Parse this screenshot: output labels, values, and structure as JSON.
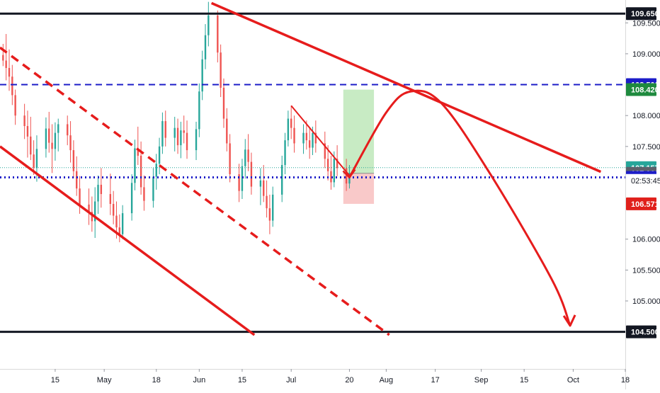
{
  "chart_data": {
    "type": "candlestick",
    "title": "",
    "y_range": [
      103.9,
      109.87
    ],
    "x_range": [
      "2021-03-28",
      "2021-10-18"
    ],
    "grid": false,
    "y_ticks": [
      {
        "value": 109.5,
        "label": "109.500"
      },
      {
        "value": 109.0,
        "label": "109.000"
      },
      {
        "value": 108.0,
        "label": "108.000"
      },
      {
        "value": 107.5,
        "label": "107.500"
      },
      {
        "value": 106.0,
        "label": "106.000"
      },
      {
        "value": 105.5,
        "label": "105.500"
      },
      {
        "value": 105.0,
        "label": "105.000"
      }
    ],
    "x_ticks": [
      {
        "date": "2021-04-15",
        "label": "15"
      },
      {
        "date": "2021-05-01",
        "label": "May"
      },
      {
        "date": "2021-05-18",
        "label": "18"
      },
      {
        "date": "2021-06-01",
        "label": "Jun"
      },
      {
        "date": "2021-06-15",
        "label": "15"
      },
      {
        "date": "2021-07-01",
        "label": "Jul"
      },
      {
        "date": "2021-07-20",
        "label": "20"
      },
      {
        "date": "2021-08-01",
        "label": "Aug"
      },
      {
        "date": "2021-08-17",
        "label": "17"
      },
      {
        "date": "2021-09-01",
        "label": "Sep"
      },
      {
        "date": "2021-09-15",
        "label": "15"
      },
      {
        "date": "2021-10-01",
        "label": "Oct"
      },
      {
        "date": "2021-10-18",
        "label": "18"
      }
    ],
    "price_tags": [
      {
        "value": 109.65,
        "label": "109.650",
        "bg": "#131722",
        "fg": "#ffffff"
      },
      {
        "value": 108.5,
        "label": "108.500",
        "bg": "#1c1cc8",
        "fg": "#ffffff"
      },
      {
        "value": 108.42,
        "label": "108.420",
        "bg": "#1e8a3e",
        "fg": "#ffffff"
      },
      {
        "value": 107.157,
        "label": "107.157",
        "bg": "#26a69a",
        "fg": "#ffffff"
      },
      {
        "value": 107.066,
        "label": "107.066",
        "bg": "#5d606b",
        "fg": "#ffffff"
      },
      {
        "value": 107.0,
        "label": "107.000",
        "bg": "#1c1cc8",
        "fg": "#ffffff"
      },
      {
        "value": 106.571,
        "label": "106.571",
        "bg": "#e0201b",
        "fg": "#ffffff"
      },
      {
        "value": 104.5,
        "label": "104.500",
        "bg": "#131722",
        "fg": "#ffffff"
      }
    ],
    "countdown": "02:53:45",
    "horizontal_levels": [
      {
        "value": 109.65,
        "style": "solid",
        "color": "#131722"
      },
      {
        "value": 104.5,
        "style": "solid",
        "color": "#131722"
      },
      {
        "value": 108.5,
        "style": "dashed",
        "color": "#1c1cc8"
      },
      {
        "value": 107.0,
        "style": "dotted",
        "color": "#1c1cc8"
      },
      {
        "value": 107.157,
        "style": "dotted-thin",
        "color": "#26a69a"
      }
    ],
    "trend_lines": [
      {
        "name": "upper-trendline",
        "from": [
          "2021-06-05",
          109.82
        ],
        "to": [
          "2021-10-10",
          107.09
        ],
        "style": "solid"
      },
      {
        "name": "channel-upper",
        "from": [
          "2021-03-28",
          109.1
        ],
        "to": [
          "2021-08-02",
          104.45
        ],
        "style": "dashed"
      },
      {
        "name": "channel-lower",
        "from": [
          "2021-03-28",
          107.5
        ],
        "to": [
          "2021-06-19",
          104.45
        ],
        "style": "solid"
      },
      {
        "name": "short-trendline",
        "from": [
          "2021-07-01",
          108.16
        ],
        "to": [
          "2021-07-20",
          107.03
        ],
        "style": "solid"
      }
    ],
    "position_box": {
      "start": "2021-07-18",
      "end": "2021-07-28",
      "entry": 107.066,
      "target": 108.42,
      "stop": 106.571
    },
    "projection_path": [
      [
        "2021-07-20",
        107.0
      ],
      [
        "2021-08-01",
        108.05
      ],
      [
        "2021-08-09",
        108.39
      ],
      [
        "2021-08-19",
        108.2
      ],
      [
        "2021-09-04",
        107.05
      ],
      [
        "2021-09-24",
        105.35
      ],
      [
        "2021-09-30",
        104.6
      ]
    ],
    "candles": [
      {
        "t": "2021-03-29",
        "o": 108.98,
        "h": 109.16,
        "l": 108.8,
        "c": 108.89
      },
      {
        "t": "2021-03-30",
        "o": 108.89,
        "h": 109.32,
        "l": 108.57,
        "c": 108.77
      },
      {
        "t": "2021-03-31",
        "o": 108.77,
        "h": 109.07,
        "l": 108.4,
        "c": 108.63
      },
      {
        "t": "2021-04-01",
        "o": 108.63,
        "h": 108.82,
        "l": 108.17,
        "c": 108.33
      },
      {
        "t": "2021-04-02",
        "o": 108.33,
        "h": 108.42,
        "l": 107.85,
        "c": 108.0
      },
      {
        "t": "2021-04-05",
        "o": 108.0,
        "h": 108.19,
        "l": 107.62,
        "c": 107.83
      },
      {
        "t": "2021-04-06",
        "o": 107.83,
        "h": 108.08,
        "l": 107.32,
        "c": 107.66
      },
      {
        "t": "2021-04-07",
        "o": 107.66,
        "h": 107.98,
        "l": 107.28,
        "c": 107.37
      },
      {
        "t": "2021-04-08",
        "o": 107.37,
        "h": 107.6,
        "l": 107.04,
        "c": 107.15
      },
      {
        "t": "2021-04-09",
        "o": 107.15,
        "h": 107.68,
        "l": 106.93,
        "c": 107.46
      },
      {
        "t": "2021-04-12",
        "o": 107.46,
        "h": 107.97,
        "l": 107.32,
        "c": 107.79
      },
      {
        "t": "2021-04-13",
        "o": 107.79,
        "h": 108.06,
        "l": 107.4,
        "c": 107.56
      },
      {
        "t": "2021-04-14",
        "o": 107.56,
        "h": 107.86,
        "l": 107.07,
        "c": 107.46
      },
      {
        "t": "2021-04-15",
        "o": 107.46,
        "h": 107.89,
        "l": 107.27,
        "c": 107.72
      },
      {
        "t": "2021-04-16",
        "o": 107.72,
        "h": 107.95,
        "l": 107.42,
        "c": 107.86
      },
      {
        "t": "2021-04-19",
        "o": 107.86,
        "h": 108.0,
        "l": 107.52,
        "c": 107.68
      },
      {
        "t": "2021-04-20",
        "o": 107.68,
        "h": 107.91,
        "l": 107.24,
        "c": 107.44
      },
      {
        "t": "2021-04-21",
        "o": 107.44,
        "h": 107.6,
        "l": 106.99,
        "c": 107.1
      },
      {
        "t": "2021-04-22",
        "o": 107.1,
        "h": 107.34,
        "l": 106.7,
        "c": 106.82
      },
      {
        "t": "2021-04-23",
        "o": 106.82,
        "h": 107.02,
        "l": 106.41,
        "c": 106.56
      },
      {
        "t": "2021-04-26",
        "o": 106.56,
        "h": 106.82,
        "l": 106.23,
        "c": 106.44
      },
      {
        "t": "2021-04-27",
        "o": 106.44,
        "h": 106.69,
        "l": 106.12,
        "c": 106.29
      },
      {
        "t": "2021-04-28",
        "o": 106.29,
        "h": 106.84,
        "l": 106.02,
        "c": 106.61
      },
      {
        "t": "2021-04-29",
        "o": 106.61,
        "h": 107.03,
        "l": 106.41,
        "c": 106.88
      },
      {
        "t": "2021-04-30",
        "o": 106.88,
        "h": 107.15,
        "l": 106.51,
        "c": 106.73
      },
      {
        "t": "2021-05-03",
        "o": 106.73,
        "h": 107.06,
        "l": 106.39,
        "c": 106.57
      },
      {
        "t": "2021-05-04",
        "o": 106.57,
        "h": 106.78,
        "l": 106.24,
        "c": 106.38
      },
      {
        "t": "2021-05-05",
        "o": 106.38,
        "h": 106.61,
        "l": 106.01,
        "c": 106.19
      },
      {
        "t": "2021-05-06",
        "o": 106.19,
        "h": 106.4,
        "l": 105.95,
        "c": 106.08
      },
      {
        "t": "2021-05-07",
        "o": 106.08,
        "h": 106.55,
        "l": 106.0,
        "c": 106.42
      },
      {
        "t": "2021-05-10",
        "o": 106.42,
        "h": 107.05,
        "l": 106.3,
        "c": 106.91
      },
      {
        "t": "2021-05-11",
        "o": 106.91,
        "h": 107.61,
        "l": 106.79,
        "c": 107.47
      },
      {
        "t": "2021-05-12",
        "o": 107.47,
        "h": 107.82,
        "l": 107.2,
        "c": 107.35
      },
      {
        "t": "2021-05-13",
        "o": 107.35,
        "h": 107.58,
        "l": 106.72,
        "c": 106.84
      },
      {
        "t": "2021-05-14",
        "o": 106.84,
        "h": 107.03,
        "l": 106.46,
        "c": 106.62
      },
      {
        "t": "2021-05-17",
        "o": 106.62,
        "h": 107.15,
        "l": 106.51,
        "c": 107.01
      },
      {
        "t": "2021-05-18",
        "o": 107.01,
        "h": 107.38,
        "l": 106.8,
        "c": 107.22
      },
      {
        "t": "2021-05-19",
        "o": 107.22,
        "h": 107.64,
        "l": 107.05,
        "c": 107.5
      },
      {
        "t": "2021-05-20",
        "o": 107.5,
        "h": 108.05,
        "l": 107.38,
        "c": 107.91
      },
      {
        "t": "2021-05-21",
        "o": 107.91,
        "h": 108.08,
        "l": 107.5,
        "c": 107.64
      },
      {
        "t": "2021-05-24",
        "o": 107.64,
        "h": 107.98,
        "l": 107.42,
        "c": 107.8
      },
      {
        "t": "2021-05-25",
        "o": 107.8,
        "h": 107.95,
        "l": 107.38,
        "c": 107.52
      },
      {
        "t": "2021-05-26",
        "o": 107.52,
        "h": 107.9,
        "l": 107.31,
        "c": 107.76
      },
      {
        "t": "2021-05-27",
        "o": 107.76,
        "h": 108.0,
        "l": 107.55,
        "c": 107.72
      },
      {
        "t": "2021-05-28",
        "o": 107.72,
        "h": 107.92,
        "l": 107.3,
        "c": 107.44
      },
      {
        "t": "2021-05-31",
        "o": 107.44,
        "h": 107.9,
        "l": 107.28,
        "c": 107.78
      },
      {
        "t": "2021-06-01",
        "o": 107.78,
        "h": 108.52,
        "l": 107.65,
        "c": 108.39
      },
      {
        "t": "2021-06-02",
        "o": 108.39,
        "h": 109.05,
        "l": 108.25,
        "c": 108.91
      },
      {
        "t": "2021-06-03",
        "o": 108.91,
        "h": 109.48,
        "l": 108.75,
        "c": 109.3
      },
      {
        "t": "2021-06-04",
        "o": 109.3,
        "h": 109.84,
        "l": 109.12,
        "c": 109.62
      },
      {
        "t": "2021-06-07",
        "o": 109.62,
        "h": 109.7,
        "l": 108.86,
        "c": 109.02
      },
      {
        "t": "2021-06-08",
        "o": 109.02,
        "h": 109.15,
        "l": 108.3,
        "c": 108.45
      },
      {
        "t": "2021-06-09",
        "o": 108.45,
        "h": 108.6,
        "l": 107.8,
        "c": 107.95
      },
      {
        "t": "2021-06-10",
        "o": 107.95,
        "h": 108.12,
        "l": 107.42,
        "c": 107.55
      },
      {
        "t": "2021-06-11",
        "o": 107.55,
        "h": 107.7,
        "l": 106.92,
        "c": 107.05
      },
      {
        "t": "2021-06-14",
        "o": 107.05,
        "h": 107.22,
        "l": 106.6,
        "c": 106.78
      },
      {
        "t": "2021-06-15",
        "o": 106.78,
        "h": 107.3,
        "l": 106.65,
        "c": 107.18
      },
      {
        "t": "2021-06-16",
        "o": 107.18,
        "h": 107.62,
        "l": 106.98,
        "c": 107.45
      },
      {
        "t": "2021-06-17",
        "o": 107.45,
        "h": 107.7,
        "l": 107.1,
        "c": 107.25
      },
      {
        "t": "2021-06-18",
        "o": 107.25,
        "h": 107.4,
        "l": 106.72,
        "c": 106.85
      },
      {
        "t": "2021-06-21",
        "o": 106.85,
        "h": 107.15,
        "l": 106.55,
        "c": 106.95
      },
      {
        "t": "2021-06-22",
        "o": 106.95,
        "h": 107.2,
        "l": 106.6,
        "c": 106.7
      },
      {
        "t": "2021-06-23",
        "o": 106.7,
        "h": 106.95,
        "l": 106.35,
        "c": 106.5
      },
      {
        "t": "2021-06-24",
        "o": 106.5,
        "h": 106.72,
        "l": 106.08,
        "c": 106.3
      },
      {
        "t": "2021-06-25",
        "o": 106.3,
        "h": 106.85,
        "l": 106.2,
        "c": 106.72
      },
      {
        "t": "2021-06-28",
        "o": 106.72,
        "h": 107.35,
        "l": 106.6,
        "c": 107.2
      },
      {
        "t": "2021-06-29",
        "o": 107.2,
        "h": 107.72,
        "l": 107.05,
        "c": 107.6
      },
      {
        "t": "2021-06-30",
        "o": 107.6,
        "h": 108.08,
        "l": 107.5,
        "c": 107.95
      },
      {
        "t": "2021-07-01",
        "o": 107.95,
        "h": 108.16,
        "l": 107.62,
        "c": 107.8
      },
      {
        "t": "2021-07-02",
        "o": 107.8,
        "h": 108.0,
        "l": 107.4,
        "c": 107.55
      },
      {
        "t": "2021-07-05",
        "o": 107.55,
        "h": 107.86,
        "l": 107.38,
        "c": 107.72
      },
      {
        "t": "2021-07-06",
        "o": 107.72,
        "h": 107.92,
        "l": 107.45,
        "c": 107.6
      },
      {
        "t": "2021-07-07",
        "o": 107.6,
        "h": 107.8,
        "l": 107.3,
        "c": 107.48
      },
      {
        "t": "2021-07-08",
        "o": 107.48,
        "h": 107.82,
        "l": 107.36,
        "c": 107.72
      },
      {
        "t": "2021-07-09",
        "o": 107.72,
        "h": 107.92,
        "l": 107.4,
        "c": 107.55
      },
      {
        "t": "2021-07-12",
        "o": 107.55,
        "h": 107.74,
        "l": 107.15,
        "c": 107.3
      },
      {
        "t": "2021-07-13",
        "o": 107.3,
        "h": 107.52,
        "l": 106.95,
        "c": 107.1
      },
      {
        "t": "2021-07-14",
        "o": 107.1,
        "h": 107.35,
        "l": 106.8,
        "c": 106.92
      },
      {
        "t": "2021-07-15",
        "o": 106.92,
        "h": 107.42,
        "l": 106.84,
        "c": 107.3
      },
      {
        "t": "2021-07-16",
        "o": 107.3,
        "h": 107.52,
        "l": 107.02,
        "c": 107.15
      },
      {
        "t": "2021-07-19",
        "o": 107.15,
        "h": 107.3,
        "l": 106.78,
        "c": 106.9
      },
      {
        "t": "2021-07-20",
        "o": 106.9,
        "h": 107.2,
        "l": 106.82,
        "c": 107.066
      }
    ]
  }
}
